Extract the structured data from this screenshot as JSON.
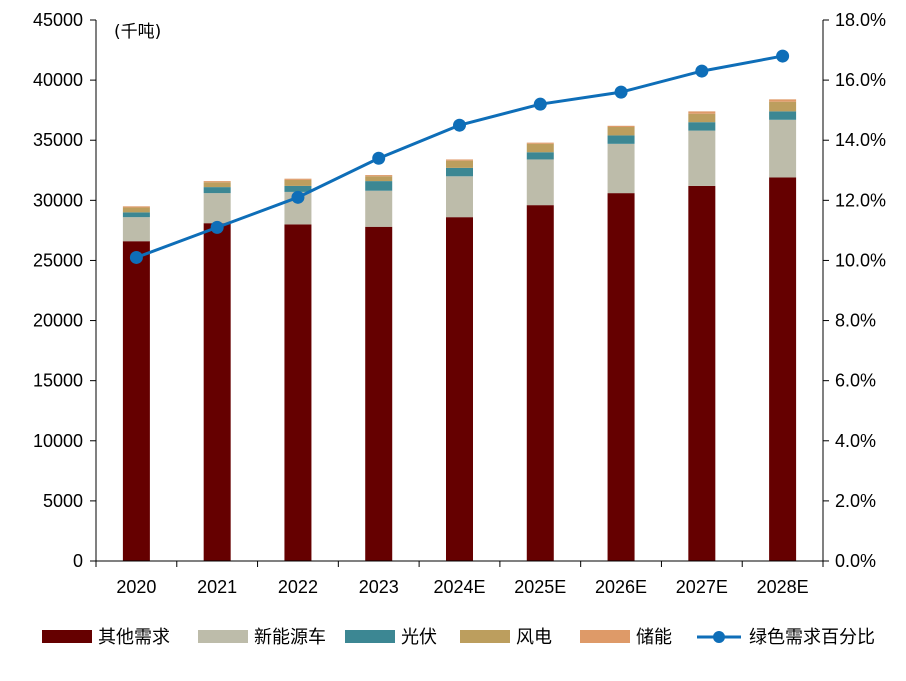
{
  "chart_data": {
    "type": "bar",
    "stacked": true,
    "unit_label": "(千吨)",
    "categories": [
      "2020",
      "2021",
      "2022",
      "2023",
      "2024E",
      "2025E",
      "2026E",
      "2027E",
      "2028E"
    ],
    "ylim": [
      0,
      45000
    ],
    "y_ticks": [
      "0",
      "5000",
      "10000",
      "15000",
      "20000",
      "25000",
      "30000",
      "35000",
      "40000",
      "45000"
    ],
    "y2lim": [
      0,
      18
    ],
    "y2_ticks": [
      "0.0%",
      "2.0%",
      "4.0%",
      "6.0%",
      "8.0%",
      "10.0%",
      "12.0%",
      "14.0%",
      "16.0%",
      "18.0%"
    ],
    "grid": false,
    "legend_position": "bottom",
    "series": [
      {
        "name": "其他需求",
        "axis": "left",
        "color": "#650000",
        "values": [
          26600,
          28100,
          28000,
          27800,
          28600,
          29600,
          30600,
          31200,
          31900
        ]
      },
      {
        "name": "新能源车",
        "axis": "left",
        "color": "#bdbcaa",
        "values": [
          2000,
          2500,
          2700,
          3000,
          3400,
          3800,
          4100,
          4600,
          4800
        ]
      },
      {
        "name": "光伏",
        "axis": "left",
        "color": "#3c8793",
        "values": [
          400,
          500,
          500,
          800,
          700,
          600,
          700,
          700,
          700
        ]
      },
      {
        "name": "风电",
        "axis": "left",
        "color": "#bc9e5e",
        "values": [
          400,
          400,
          500,
          400,
          600,
          700,
          700,
          700,
          800
        ]
      },
      {
        "name": "储能",
        "axis": "left",
        "color": "#de9a68",
        "values": [
          100,
          100,
          100,
          100,
          100,
          100,
          100,
          200,
          200
        ]
      },
      {
        "name": "绿色需求百分比",
        "axis": "right",
        "type": "line",
        "color": "#0e6eb8",
        "values": [
          10.1,
          11.1,
          12.1,
          13.4,
          14.5,
          15.2,
          15.6,
          16.3,
          16.8
        ]
      }
    ]
  }
}
